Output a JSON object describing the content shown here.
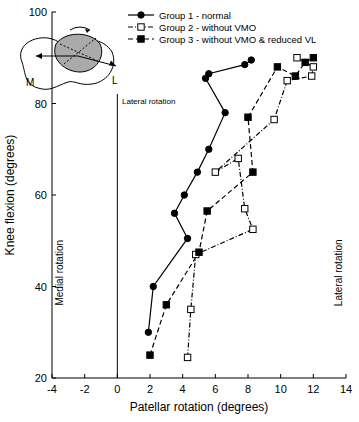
{
  "chart_data": {
    "type": "line",
    "x_label": "Patellar rotation (degrees)",
    "y_label": "Knee flexion (degrees)",
    "xlim": [
      -4,
      14
    ],
    "xticks": [
      -4,
      -2,
      0,
      2,
      4,
      6,
      8,
      10,
      12,
      14
    ],
    "ylim": [
      20,
      100
    ],
    "yticks": [
      20,
      40,
      60,
      80,
      100
    ],
    "grid": false,
    "legend": "top",
    "annotations": [
      {
        "text": "Medial rotation"
      },
      {
        "text": "Lateral rotation"
      },
      {
        "text": "M"
      },
      {
        "text": "L"
      },
      {
        "text": "Lateral rotation"
      }
    ],
    "series": [
      {
        "name": "Group 1 - normal",
        "color": "#000000",
        "marker": "circle",
        "line_style": "solid",
        "x": [
          1.9,
          2.2,
          4.3,
          3.5,
          4.1,
          4.9,
          5.6,
          6.6,
          5.4,
          5.6,
          7.8,
          8.2
        ],
        "values": [
          30,
          40,
          50.5,
          56,
          60,
          65,
          70,
          78,
          85.5,
          86.5,
          88.5,
          89.5
        ]
      },
      {
        "name": "Group 2 - without VMO",
        "color": "#000000",
        "marker": "square-open",
        "line_style": "dashdot",
        "x": [
          4.3,
          4.5,
          4.8,
          8.3,
          7.8,
          7.4,
          6.0,
          9.6,
          10.4,
          11.9,
          12.0,
          11.0
        ],
        "values": [
          24.5,
          35,
          47,
          52.5,
          57,
          68,
          65,
          76.5,
          85,
          86,
          88,
          90
        ]
      },
      {
        "name": "Group 3 - without VMO & reduced VL",
        "color": "#000000",
        "marker": "square",
        "line_style": "dashed",
        "x": [
          2.0,
          3.0,
          5.0,
          5.5,
          8.3,
          8.0,
          9.8,
          10.9,
          11.5,
          12.0
        ],
        "values": [
          25,
          36,
          47.5,
          56.5,
          65,
          77,
          88,
          86,
          89,
          90
        ]
      }
    ]
  }
}
